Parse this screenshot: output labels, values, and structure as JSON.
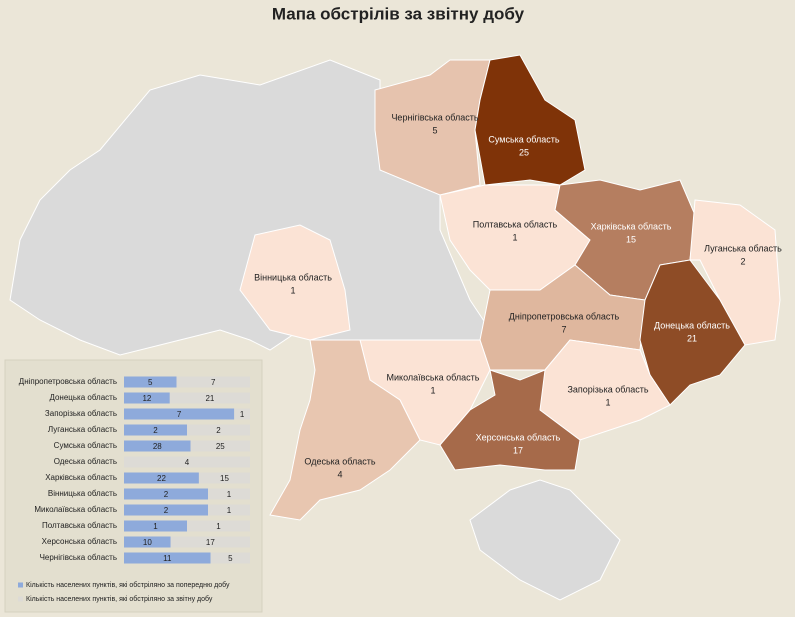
{
  "title": "Мапа обстрілів за звітну добу",
  "regions": [
    {
      "name": "Чернігівська область",
      "value": 5,
      "color": "#e6c3ae"
    },
    {
      "name": "Сумська область",
      "value": 25,
      "color": "#7f3308"
    },
    {
      "name": "Полтавська область",
      "value": 1,
      "color": "#fbe3d5"
    },
    {
      "name": "Харківська область",
      "value": 15,
      "color": "#b57e60"
    },
    {
      "name": "Луганська область",
      "value": 2,
      "color": "#fbe3d5"
    },
    {
      "name": "Вінницька область",
      "value": 1,
      "color": "#fbe3d5"
    },
    {
      "name": "Дніпропетровська область",
      "value": 7,
      "color": "#dfb79e"
    },
    {
      "name": "Донецька область",
      "value": 21,
      "color": "#8e4c26"
    },
    {
      "name": "Миколаївська область",
      "value": 1,
      "color": "#fbe3d5"
    },
    {
      "name": "Запорізька область",
      "value": 1,
      "color": "#fbe3d5"
    },
    {
      "name": "Херсонська область",
      "value": 17,
      "color": "#a66a4a"
    },
    {
      "name": "Одеська область",
      "value": 4,
      "color": "#e8c6b0"
    }
  ],
  "chart_data": {
    "type": "bar",
    "orientation": "horizontal",
    "stacking": "percent",
    "categories": [
      "Дніпропетровська область",
      "Донецька область",
      "Запорізька область",
      "Луганська область",
      "Сумська область",
      "Одеська область",
      "Харківська область",
      "Вінницька область",
      "Миколаївська область",
      "Полтавська область",
      "Херсонська область",
      "Чернігівська область"
    ],
    "series": [
      {
        "name": "Кількість населених пунктів, які обстріляно за попередню добу",
        "color": "#8eaadb",
        "values": [
          5,
          12,
          7,
          2,
          28,
          null,
          22,
          2,
          2,
          1,
          10,
          11
        ]
      },
      {
        "name": "Кількість населених пунктів, які обстріляно за звітну добу",
        "color": "#dddbd6",
        "values": [
          7,
          21,
          1,
          2,
          25,
          4,
          15,
          1,
          1,
          1,
          17,
          5
        ]
      }
    ]
  }
}
